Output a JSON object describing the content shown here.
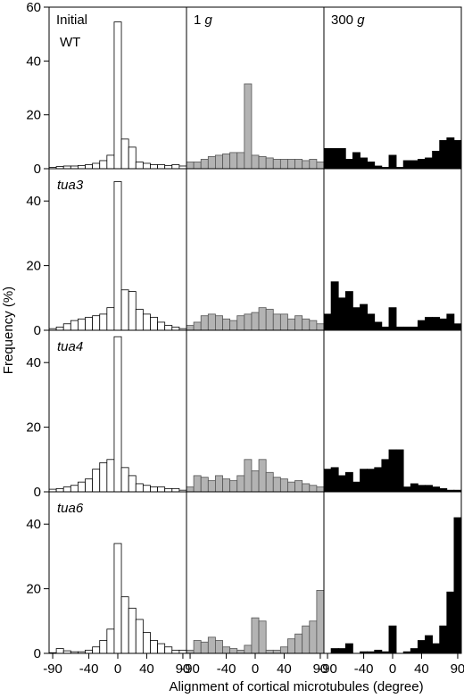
{
  "figure": {
    "ylabel": "Frequency (%)",
    "xlabel": "Alignment of cortical microtubules (degree)",
    "column_titles": [
      {
        "main": "Initial",
        "italic": ""
      },
      {
        "main": "1 ",
        "italic": "g"
      },
      {
        "main": "300 ",
        "italic": "g"
      }
    ],
    "row_labels": [
      "WT",
      "tua3",
      "tua4",
      "tua6"
    ],
    "xticks": [
      "-90",
      "-40",
      "0",
      "40",
      "90"
    ],
    "colors": {
      "Initial": "#ffffff",
      "1 g": "#b3b3b3",
      "300 g": "#000000"
    }
  },
  "chart_data": {
    "type": "bar",
    "layout": "4x3 histogram grid",
    "x_bins": [
      -90,
      -80,
      -70,
      -60,
      -50,
      -40,
      -30,
      -20,
      -10,
      0,
      10,
      20,
      30,
      40,
      50,
      60,
      70,
      80,
      90
    ],
    "xlim": [
      -95,
      95
    ],
    "xticks": [
      -90,
      -40,
      0,
      40,
      90
    ],
    "xlabel": "Alignment of cortical microtubules (degree)",
    "ylabel": "Frequency (%)",
    "rows": [
      {
        "genotype": "WT",
        "ylim": [
          0,
          60
        ],
        "yticks": [
          0,
          20,
          40,
          60
        ],
        "series": [
          {
            "name": "Initial",
            "values": [
              0.5,
              0.8,
              1,
              1,
              1.2,
              1.5,
              2,
              3,
              5,
              54.5,
              11,
              8,
              2.5,
              2,
              1.5,
              1.5,
              1.2,
              1.5,
              1
            ]
          },
          {
            "name": "1 g",
            "values": [
              2.5,
              2.5,
              3.5,
              4.5,
              5,
              5.5,
              6,
              6,
              31.5,
              5,
              4.5,
              4,
              3.5,
              3.5,
              3.5,
              3.5,
              3,
              3.5,
              2.5
            ]
          },
          {
            "name": "300 g",
            "values": [
              7.5,
              7.5,
              7.5,
              3.5,
              6,
              4,
              2.5,
              1,
              0.5,
              5,
              0.5,
              3,
              3,
              3.5,
              4,
              6.5,
              10.5,
              11.5,
              10.5
            ]
          }
        ]
      },
      {
        "genotype": "tua3",
        "ylim": [
          0,
          50
        ],
        "yticks": [
          0,
          20,
          40
        ],
        "series": [
          {
            "name": "Initial",
            "values": [
              0.5,
              1,
              2,
              3,
              3.5,
              4,
              4.5,
              5,
              7,
              46,
              12.5,
              12,
              6.5,
              5,
              4,
              2.5,
              1.5,
              1,
              0.5
            ]
          },
          {
            "name": "1 g",
            "values": [
              1.5,
              2.5,
              4.5,
              5,
              4.5,
              3.5,
              3,
              4.5,
              5,
              5.5,
              7,
              6.5,
              5,
              5,
              3.5,
              4.5,
              3.5,
              3,
              2
            ]
          },
          {
            "name": "300 g",
            "values": [
              5,
              15,
              10,
              12,
              7,
              8,
              5,
              2.5,
              1,
              7,
              1,
              1,
              1,
              3,
              4,
              4,
              3.5,
              5,
              2
            ]
          }
        ]
      },
      {
        "genotype": "tua4",
        "ylim": [
          0,
          50
        ],
        "yticks": [
          0,
          20,
          40
        ],
        "series": [
          {
            "name": "Initial",
            "values": [
              0.8,
              1,
              1.5,
              2,
              3,
              4,
              7,
              9,
              10,
              48,
              7.5,
              5,
              2.5,
              2,
              1.5,
              1.5,
              1,
              1,
              0.5
            ]
          },
          {
            "name": "1 g",
            "values": [
              1.5,
              5,
              4.5,
              3.5,
              5,
              4,
              3.5,
              5,
              10,
              6.5,
              10,
              6,
              4.5,
              4,
              3,
              3.5,
              2.5,
              2,
              1.5
            ]
          },
          {
            "name": "300 g",
            "values": [
              7,
              7.5,
              5,
              6,
              3,
              7,
              7,
              7.5,
              10,
              13,
              13,
              1.5,
              2.5,
              2,
              2,
              1.5,
              1,
              0.5,
              0.5
            ]
          }
        ]
      },
      {
        "genotype": "tua6",
        "ylim": [
          0,
          50
        ],
        "yticks": [
          0,
          20,
          40
        ],
        "series": [
          {
            "name": "Initial",
            "values": [
              0.2,
              1.5,
              0.8,
              0.5,
              0.5,
              1,
              2,
              4,
              7.5,
              34,
              17.5,
              14,
              10.5,
              6.5,
              4,
              3,
              2,
              1,
              1
            ]
          },
          {
            "name": "1 g",
            "values": [
              1,
              4,
              3.5,
              5,
              4,
              2,
              1.5,
              1,
              2.5,
              11,
              10,
              1,
              1,
              2,
              4.5,
              6,
              8.5,
              10,
              19.5
            ]
          },
          {
            "name": "300 g",
            "values": [
              0,
              1.5,
              1.5,
              3,
              0,
              0.5,
              0.5,
              1,
              0.5,
              8.5,
              0,
              0.5,
              1.5,
              4,
              5.5,
              3,
              8.5,
              19,
              42
            ]
          }
        ]
      }
    ]
  }
}
